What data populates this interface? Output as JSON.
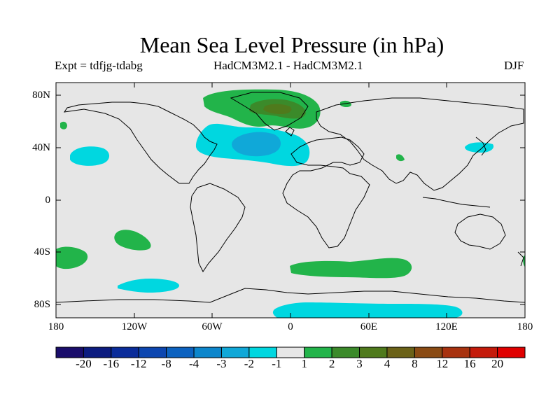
{
  "title": "Mean Sea Level Pressure (in hPa)",
  "experiment_label": "Expt = tdfjg-tdabg",
  "model_label": "HadCM3M2.1 - HadCM3M2.1",
  "season_label": "DJF",
  "lat_ticks": [
    "80N",
    "40N",
    "0",
    "40S",
    "80S"
  ],
  "lon_ticks": [
    "180",
    "120W",
    "60W",
    "0",
    "60E",
    "120E",
    "180"
  ],
  "colors": {
    "land_ocean_bg": "#e6e6e6",
    "coastline": "#000000",
    "light_cyan": "#00d7e0",
    "mid_blue": "#10a8d8",
    "light_green": "#22b44a",
    "olive_green": "#3b8a2a",
    "dark_olive": "#4f7a1c"
  },
  "colorbar": {
    "labels": [
      "-20",
      "-16",
      "-12",
      "-8",
      "-4",
      "-3",
      "-2",
      "-1",
      "1",
      "2",
      "3",
      "4",
      "8",
      "12",
      "16",
      "20"
    ],
    "colors": [
      "#1a0d6b",
      "#0c1c80",
      "#0a2c9a",
      "#0c46b0",
      "#0c62c0",
      "#0c86cc",
      "#10a8d8",
      "#00d7e0",
      "#e6e6e6",
      "#22b44a",
      "#3b8a2a",
      "#4f7a1c",
      "#6b6218",
      "#8a4b14",
      "#a8320f",
      "#c41a0a",
      "#e00000"
    ]
  },
  "anomaly_regions": [
    {
      "name": "north-atlantic-negative",
      "range": "-1 to -2 hPa"
    },
    {
      "name": "north-atlantic-core",
      "range": "-2 to -3 hPa"
    },
    {
      "name": "north-pacific-negative",
      "range": "-1 to -2 hPa"
    },
    {
      "name": "japan-negative",
      "range": "-1 to -2 hPa"
    },
    {
      "name": "southern-ocean-pacific-negative",
      "range": "-1 to -2 hPa"
    },
    {
      "name": "antarctic-coast-negative",
      "range": "-1 to -2 hPa"
    },
    {
      "name": "greenland-arctic-positive",
      "range": "1 to 2 hPa"
    },
    {
      "name": "greenland-core",
      "range": "2 to 3 hPa"
    },
    {
      "name": "greenland-max",
      "range": "3 to 4 hPa"
    },
    {
      "name": "south-pacific-positive",
      "range": "1 to 2 hPa"
    },
    {
      "name": "southern-indian-positive",
      "range": "1 to 2 hPa"
    },
    {
      "name": "east-pacific-south-positive",
      "range": "1 to 2 hPa"
    }
  ]
}
